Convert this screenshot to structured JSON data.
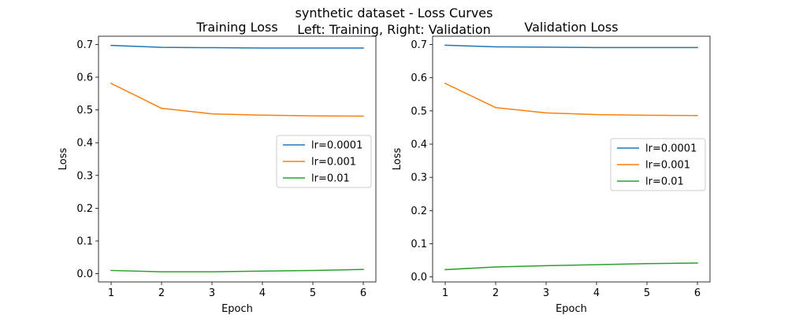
{
  "suptitle": {
    "line1": "synthetic dataset - Loss Curves",
    "line2": "Left: Training, Right: Validation"
  },
  "colors": {
    "lr=0.0001": "#1f77b4",
    "lr=0.001": "#ff7f0e",
    "lr=0.01": "#2ca02c"
  },
  "chart_data": [
    {
      "type": "line",
      "title": "Training Loss",
      "xlabel": "Epoch",
      "ylabel": "Loss",
      "x": [
        1,
        2,
        3,
        4,
        5,
        6
      ],
      "xlim": [
        0.75,
        6.25
      ],
      "ylim": [
        -0.025,
        0.725
      ],
      "xticks": [
        1,
        2,
        3,
        4,
        5,
        6
      ],
      "yticks": [
        "0.0",
        "0.1",
        "0.2",
        "0.3",
        "0.4",
        "0.5",
        "0.6",
        "0.7"
      ],
      "grid": false,
      "legend_position": "center-right",
      "series": [
        {
          "name": "lr=0.0001",
          "values": [
            0.697,
            0.691,
            0.69,
            0.689,
            0.689,
            0.689
          ]
        },
        {
          "name": "lr=0.001",
          "values": [
            0.581,
            0.505,
            0.488,
            0.484,
            0.482,
            0.481
          ]
        },
        {
          "name": "lr=0.01",
          "values": [
            0.01,
            0.006,
            0.006,
            0.008,
            0.01,
            0.013
          ]
        }
      ]
    },
    {
      "type": "line",
      "title": "Validation Loss",
      "xlabel": "Epoch",
      "ylabel": "Loss",
      "x": [
        1,
        2,
        3,
        4,
        5,
        6
      ],
      "xlim": [
        0.75,
        6.25
      ],
      "ylim": [
        -0.015,
        0.725
      ],
      "xticks": [
        1,
        2,
        3,
        4,
        5,
        6
      ],
      "yticks": [
        "0.0",
        "0.1",
        "0.2",
        "0.3",
        "0.4",
        "0.5",
        "0.6",
        "0.7"
      ],
      "grid": false,
      "legend_position": "center-right",
      "series": [
        {
          "name": "lr=0.0001",
          "values": [
            0.698,
            0.693,
            0.692,
            0.691,
            0.691,
            0.691
          ]
        },
        {
          "name": "lr=0.001",
          "values": [
            0.583,
            0.51,
            0.494,
            0.489,
            0.487,
            0.486
          ]
        },
        {
          "name": "lr=0.01",
          "values": [
            0.022,
            0.03,
            0.034,
            0.037,
            0.04,
            0.042
          ]
        }
      ]
    }
  ]
}
